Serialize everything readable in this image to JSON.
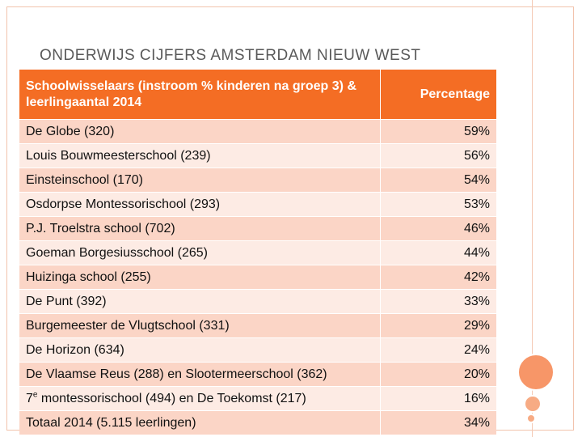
{
  "title": {
    "text": "ONDERWIJS CIJFERS AMSTERDAM NIEUW WEST"
  },
  "table": {
    "headers": {
      "school": "Schoolwisselaars (instroom % kinderen na groep 3) & leerlingaantal 2014",
      "percentage": "Percentage"
    },
    "rows": [
      {
        "school": "De Globe (320)",
        "percentage": "59%"
      },
      {
        "school": "Louis Bouwmeesterschool (239)",
        "percentage": "56%"
      },
      {
        "school": "Einsteinschool (170)",
        "percentage": "54%"
      },
      {
        "school": "Osdorpse Montessorischool (293)",
        "percentage": "53%"
      },
      {
        "school": "P.J. Troelstra school (702)",
        "percentage": "46%"
      },
      {
        "school": "Goeman Borgesiusschool (265)",
        "percentage": "44%"
      },
      {
        "school": "Huizinga school (255)",
        "percentage": "42%"
      },
      {
        "school": "De Punt (392)",
        "percentage": "33%"
      },
      {
        "school": "Burgemeester de Vlugtschool  (331)",
        "percentage": "29%"
      },
      {
        "school": "De Horizon (634)",
        "percentage": "24%"
      },
      {
        "school": "De Vlaamse Reus (288) en Slootermeerschool (362)",
        "percentage": "20%"
      },
      {
        "school_prefix": "7",
        "school_superscript": "e",
        "school_suffix": " montessorischool (494) en De Toekomst (217)",
        "percentage": "16%"
      },
      {
        "school": "Totaal 2014 (5.115 leerlingen)",
        "percentage": "34%"
      }
    ]
  },
  "colors": {
    "header_bg": "#f46d24",
    "row_odd": "#fbd5c6",
    "row_even": "#fdebe4",
    "accent_circle": "#f79668"
  }
}
